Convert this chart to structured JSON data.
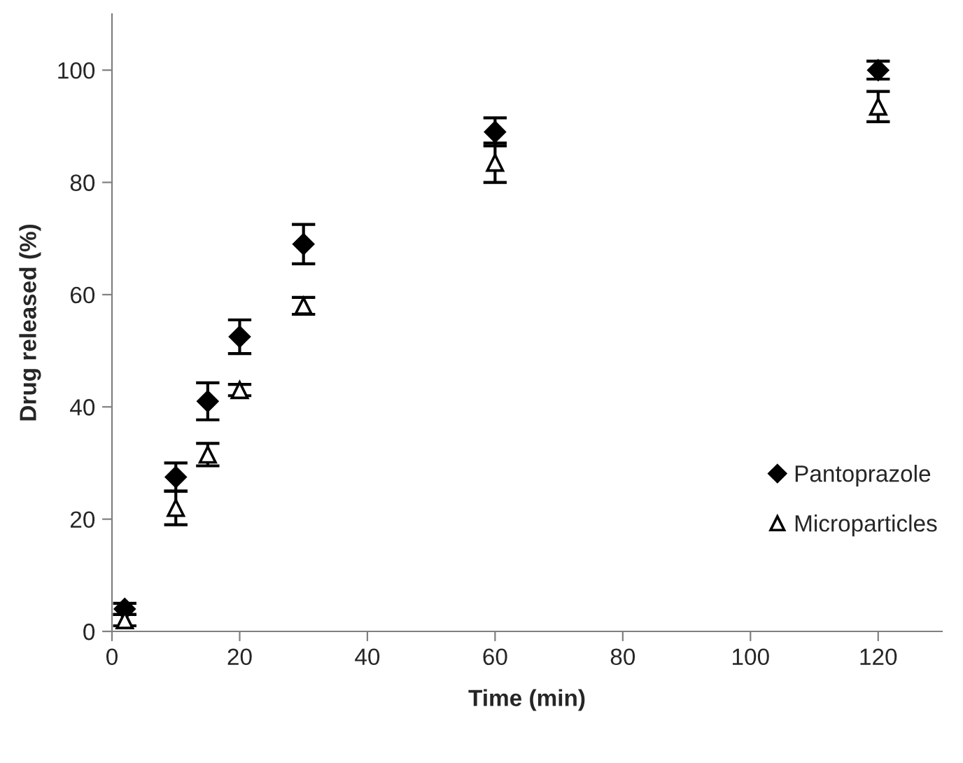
{
  "chart_data": {
    "type": "scatter",
    "xlabel": "Time (min)",
    "ylabel": "Drug released (%)",
    "series": [
      {
        "name": "Pantoprazole",
        "color": "#000000",
        "marker": "diamond",
        "x": [
          2,
          10,
          15,
          20,
          30,
          60,
          120
        ],
        "values": [
          4,
          27.5,
          41,
          52.5,
          69,
          89,
          100
        ],
        "errors": [
          1,
          2.5,
          3.3,
          3,
          3.5,
          2.5,
          1.6
        ]
      },
      {
        "name": "Microparticles",
        "color": "#000000",
        "marker": "triangle",
        "x": [
          2,
          10,
          15,
          20,
          30,
          60,
          120
        ],
        "values": [
          2,
          22,
          31.5,
          43,
          58,
          83.5,
          93.5
        ],
        "errors": [
          1,
          3,
          2,
          1,
          1.5,
          3.5,
          2.7
        ]
      }
    ],
    "xlim": [
      0,
      130
    ],
    "xticks": [
      0,
      20,
      40,
      60,
      80,
      100,
      120
    ],
    "ylim": [
      0,
      110
    ],
    "yticks": [
      0,
      20,
      40,
      60,
      80,
      100
    ],
    "grid": false,
    "legend": "bottom right"
  }
}
